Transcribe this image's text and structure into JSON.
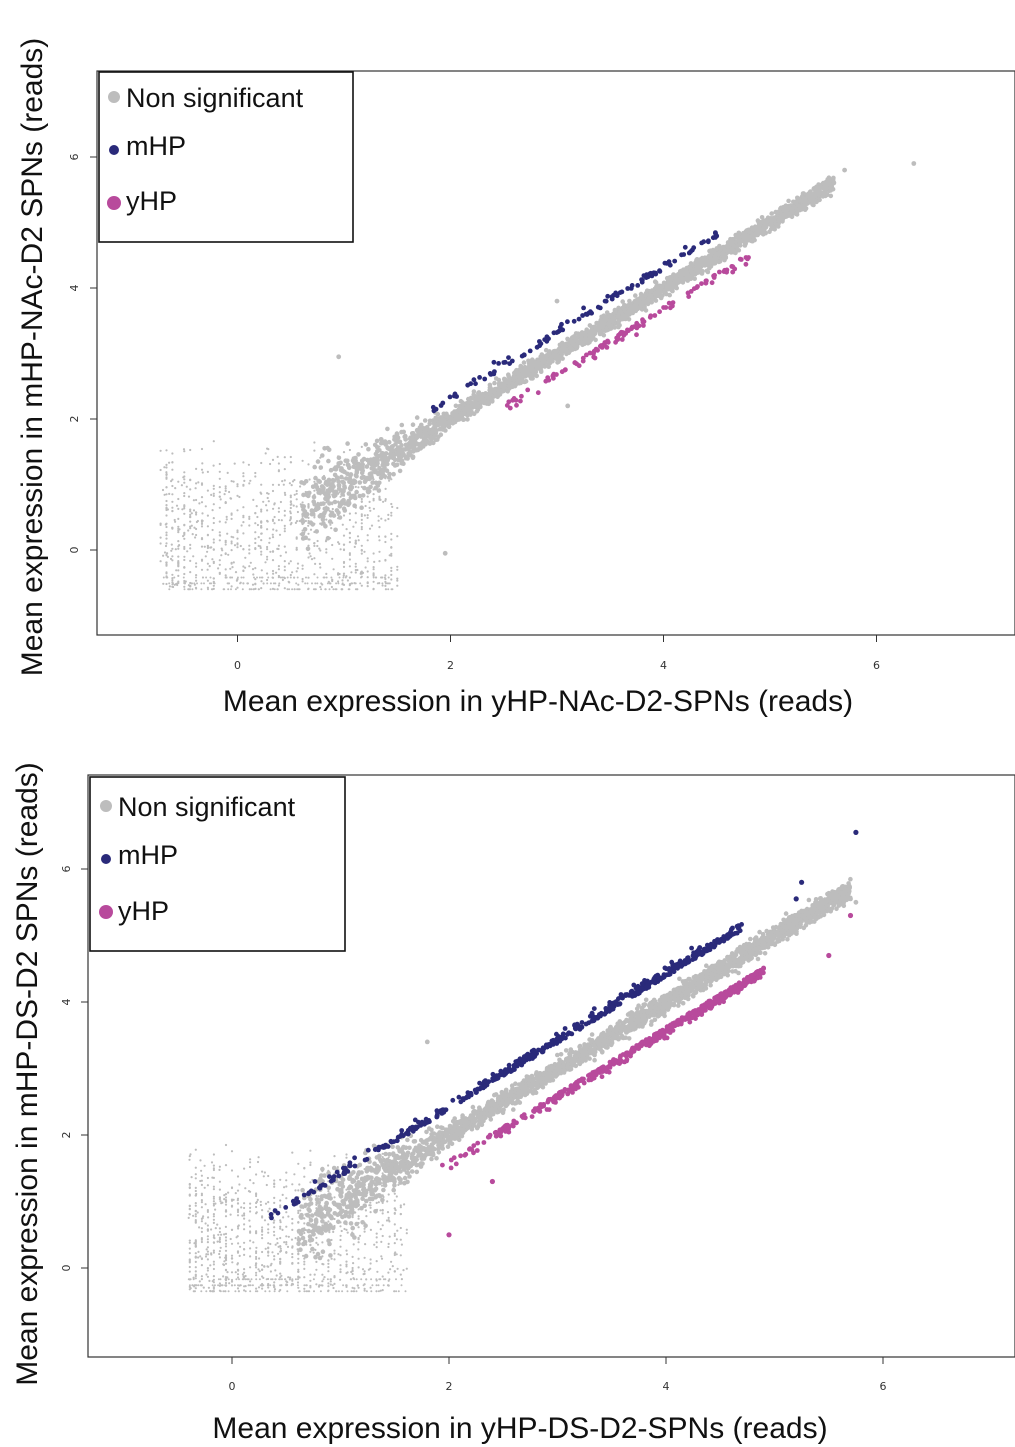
{
  "colors": {
    "nonsig": "#bdbdbd",
    "mhp": "#2a2a7a",
    "yhp": "#b84a9c",
    "axis": "#333333"
  },
  "chart_data": [
    {
      "type": "scatter",
      "xlabel": "Mean expression in yHP-NAc-D2-SPNs (reads)",
      "ylabel": "Mean expression in mHP-NAc-D2 SPNs (reads)",
      "xticks": [
        "0",
        "2",
        "4",
        "6"
      ],
      "yticks": [
        "0",
        "2",
        "4",
        "6"
      ],
      "xlim": [
        -1.3,
        7.2
      ],
      "ylim": [
        -1.3,
        7.3
      ],
      "grid": false,
      "legend_position": "top-left",
      "legend": [
        "Non significant",
        "mHP",
        "yHP"
      ],
      "series": [
        {
          "name": "Non significant",
          "color_key": "nonsig",
          "trend": {
            "x_start": -0.7,
            "x_end": 5.6,
            "spread": 0.12
          },
          "low_cloud": {
            "x_range": [
              -0.7,
              1.5
            ],
            "y_range": [
              -0.6,
              1.7
            ]
          },
          "outliers": [
            [
              6.35,
              5.9
            ],
            [
              5.7,
              5.8
            ],
            [
              5.5,
              5.6
            ],
            [
              0.95,
              2.95
            ],
            [
              3.0,
              3.8
            ],
            [
              3.1,
              2.2
            ],
            [
              1.95,
              -0.05
            ]
          ]
        },
        {
          "name": "mHP",
          "color_key": "mhp",
          "x_range": [
            1.8,
            4.5
          ],
          "offset": 0.28
        },
        {
          "name": "yHP",
          "color_key": "yhp",
          "x_range": [
            2.5,
            4.8
          ],
          "offset": -0.28
        }
      ]
    },
    {
      "type": "scatter",
      "xlabel": "Mean expression in yHP-DS-D2-SPNs (reads)",
      "ylabel": "Mean expression in mHP-DS-D2 SPNs (reads)",
      "xticks": [
        "0",
        "2",
        "4",
        "6"
      ],
      "yticks": [
        "0",
        "2",
        "4",
        "6"
      ],
      "xlim": [
        -1.3,
        7.2
      ],
      "ylim": [
        -1.3,
        7.3
      ],
      "grid": false,
      "legend_position": "top-left",
      "legend": [
        "Non significant",
        "mHP",
        "yHP"
      ],
      "series": [
        {
          "name": "Non significant",
          "color_key": "nonsig",
          "trend": {
            "x_start": -0.4,
            "x_end": 5.7,
            "spread": 0.14
          },
          "low_cloud": {
            "x_range": [
              -0.4,
              1.6
            ],
            "y_range": [
              -0.35,
              1.9
            ]
          },
          "outliers": [
            [
              5.7,
              5.55
            ],
            [
              5.75,
              5.5
            ],
            [
              1.8,
              3.4
            ]
          ]
        },
        {
          "name": "mHP",
          "color_key": "mhp",
          "x_range": [
            0.2,
            4.7
          ],
          "offset": 0.38,
          "outliers": [
            [
              5.75,
              6.55
            ],
            [
              5.25,
              5.8
            ],
            [
              5.2,
              5.55
            ]
          ]
        },
        {
          "name": "yHP",
          "color_key": "yhp",
          "x_range": [
            1.9,
            4.9
          ],
          "offset": -0.38,
          "outliers": [
            [
              5.7,
              5.3
            ],
            [
              5.5,
              4.7
            ],
            [
              2.0,
              0.5
            ],
            [
              2.4,
              1.3
            ]
          ]
        }
      ]
    }
  ]
}
